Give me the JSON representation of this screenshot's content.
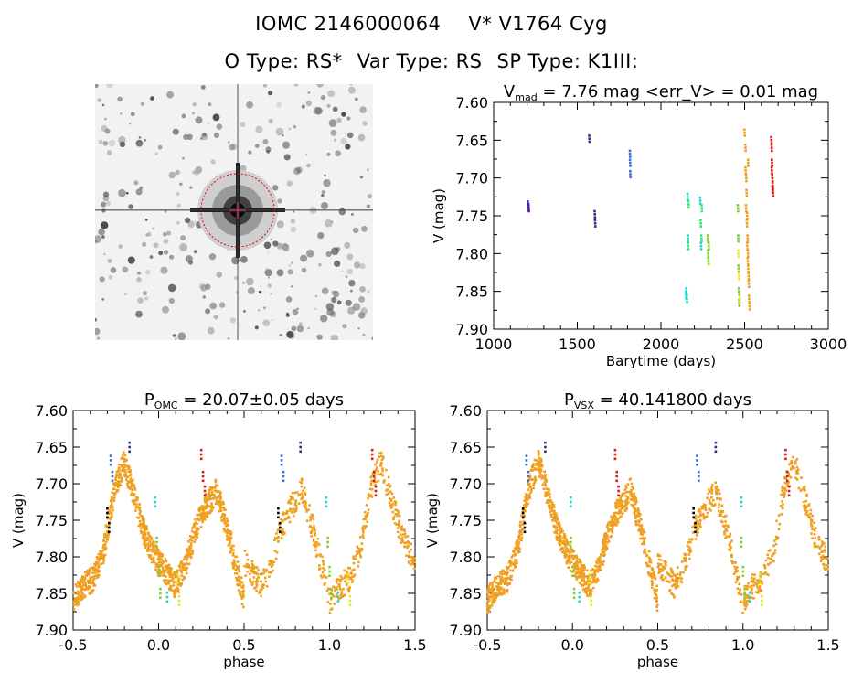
{
  "header": {
    "catalog_id": "IOMC 2146000064",
    "star_name": "V* V1764 Cyg",
    "o_type": "O Type: RS*",
    "var_type": "Var Type: RS",
    "sp_type": "SP Type: K1III:"
  },
  "colors": {
    "axis": "#000000",
    "circle": "#e00000",
    "crosshair": "#ff3060",
    "sky_background": "#f2f2f2"
  },
  "chart_data": [
    {
      "id": "lightcurve",
      "type": "scatter",
      "title_main": "V",
      "title_sub": "mad",
      "title_rest": " = 7.76 mag <err_V> = 0.01 mag",
      "xlabel": "Barytime (days)",
      "ylabel": "V (mag)",
      "xlim": [
        1000,
        3000
      ],
      "ylim": [
        7.9,
        7.6
      ],
      "xticks": [
        "1000",
        "1500",
        "2000",
        "2500",
        "3000"
      ],
      "yticks": [
        "7.60",
        "7.65",
        "7.70",
        "7.75",
        "7.80",
        "7.85",
        "7.90"
      ],
      "series": [
        {
          "color": "#5020a0",
          "x": [
            1205,
            1208,
            1210
          ],
          "y": [
            7.735,
            7.738,
            7.74
          ]
        },
        {
          "color": "#303080",
          "x": [
            1572,
            1605,
            1607
          ],
          "y": [
            7.648,
            7.748,
            7.76
          ]
        },
        {
          "color": "#3a70d0",
          "x": [
            1815,
            1816,
            1817
          ],
          "y": [
            7.668,
            7.68,
            7.695
          ]
        },
        {
          "color": "#20d8c8",
          "x": [
            2150,
            2152,
            2155,
            2160,
            2162,
            2235,
            2240
          ],
          "y": [
            7.855,
            7.85,
            7.86,
            7.725,
            7.78,
            7.73,
            7.79
          ]
        },
        {
          "color": "#30e878",
          "x": [
            2163,
            2165,
            2238,
            2242,
            2244
          ],
          "y": [
            7.79,
            7.735,
            7.76,
            7.78,
            7.74
          ]
        },
        {
          "color": "#80d030",
          "x": [
            2280,
            2282,
            2284,
            2286,
            2460,
            2462,
            2464,
            2466,
            2468
          ],
          "y": [
            7.78,
            7.8,
            7.81,
            7.79,
            7.74,
            7.78,
            7.82,
            7.85,
            7.865
          ]
        },
        {
          "color": "#e8e820",
          "x": [
            2463,
            2467,
            2471
          ],
          "y": [
            7.8,
            7.83,
            7.86
          ]
        },
        {
          "color": "#f0a020",
          "x": [
            2500,
            2505,
            2510,
            2512,
            2515,
            2518,
            2520,
            2522,
            2525,
            2527,
            2530,
            2506,
            2514,
            2519,
            2524,
            2509,
            2516,
            2521
          ],
          "y": [
            7.64,
            7.66,
            7.7,
            7.72,
            7.75,
            7.78,
            7.8,
            7.82,
            7.84,
            7.86,
            7.87,
            7.69,
            7.76,
            7.81,
            7.83,
            7.74,
            7.79,
            7.68
          ]
        },
        {
          "color": "#d02010",
          "x": [
            2660,
            2662,
            2664,
            2666,
            2668,
            2670,
            2663,
            2667
          ],
          "y": [
            7.65,
            7.66,
            7.68,
            7.7,
            7.71,
            7.72,
            7.69,
            7.715
          ]
        }
      ]
    },
    {
      "id": "phase_omc",
      "type": "scatter",
      "title_main": "P",
      "title_sub": "OMC",
      "title_rest": " = 20.07±0.05 days",
      "xlabel": "phase",
      "ylabel": "V (mag)",
      "xlim": [
        -0.5,
        1.5
      ],
      "ylim": [
        7.9,
        7.6
      ],
      "xticks": [
        "-0.5",
        "0.0",
        "0.5",
        "1.0",
        "1.5"
      ],
      "yticks": [
        "7.60",
        "7.65",
        "7.70",
        "7.75",
        "7.80",
        "7.85",
        "7.90"
      ],
      "curve": {
        "phase": [
          0.0,
          0.06,
          0.12,
          0.18,
          0.24,
          0.3,
          0.36,
          0.42,
          0.48,
          0.54,
          0.6,
          0.66,
          0.72,
          0.78,
          0.84,
          0.9,
          0.96,
          1.0
        ],
        "v": [
          7.86,
          7.84,
          7.83,
          7.79,
          7.71,
          7.67,
          7.72,
          7.77,
          7.8,
          7.82,
          7.84,
          7.81,
          7.76,
          7.73,
          7.71,
          7.76,
          7.82,
          7.86
        ]
      },
      "curve_color": "#f0a020",
      "extra_series": [
        {
          "color": "#303080",
          "x": [
            -0.17,
            0.83
          ],
          "y": [
            7.65,
            7.65
          ]
        },
        {
          "color": "#3a70d0",
          "x": [
            -0.28,
            -0.27,
            0.72,
            0.73
          ],
          "y": [
            7.668,
            7.69,
            7.668,
            7.69
          ]
        },
        {
          "color": "#000000",
          "x": [
            -0.3,
            -0.29,
            0.7,
            0.71
          ],
          "y": [
            7.74,
            7.76,
            7.74,
            7.76
          ]
        },
        {
          "color": "#20d8c8",
          "x": [
            -0.02,
            0.05,
            0.98,
            1.05
          ],
          "y": [
            7.725,
            7.855,
            7.725,
            7.855
          ]
        },
        {
          "color": "#80d030",
          "x": [
            -0.01,
            0.0,
            0.01,
            0.99,
            1.0,
            1.01
          ],
          "y": [
            7.78,
            7.82,
            7.85,
            7.78,
            7.82,
            7.85
          ]
        },
        {
          "color": "#e8e820",
          "x": [
            0.11,
            0.12,
            1.11,
            1.12
          ],
          "y": [
            7.83,
            7.86,
            7.83,
            7.86
          ]
        },
        {
          "color": "#d02010",
          "x": [
            0.25,
            0.26,
            0.27,
            1.25,
            1.26,
            1.27
          ],
          "y": [
            7.66,
            7.69,
            7.71,
            7.66,
            7.69,
            7.71
          ]
        }
      ]
    },
    {
      "id": "phase_vsx",
      "type": "scatter",
      "title_main": "P",
      "title_sub": "VSX",
      "title_rest": " = 40.141800 days",
      "xlabel": "phase",
      "ylabel": "V (mag)",
      "xlim": [
        -0.5,
        1.5
      ],
      "ylim": [
        7.9,
        7.6
      ],
      "xticks": [
        "-0.5",
        "0.0",
        "0.5",
        "1.0",
        "1.5"
      ],
      "yticks": [
        "7.60",
        "7.65",
        "7.70",
        "7.75",
        "7.80",
        "7.85",
        "7.90"
      ],
      "curve": {
        "phase": [
          0.0,
          0.06,
          0.12,
          0.18,
          0.24,
          0.3,
          0.36,
          0.42,
          0.48,
          0.54,
          0.6,
          0.66,
          0.72,
          0.78,
          0.84,
          0.9,
          0.96,
          1.0
        ],
        "v": [
          7.86,
          7.84,
          7.83,
          7.79,
          7.71,
          7.67,
          7.72,
          7.77,
          7.8,
          7.82,
          7.84,
          7.81,
          7.76,
          7.73,
          7.71,
          7.76,
          7.82,
          7.86
        ]
      },
      "curve_color": "#f0a020",
      "extra_series": [
        {
          "color": "#303080",
          "x": [
            -0.16,
            0.84
          ],
          "y": [
            7.65,
            7.65
          ]
        },
        {
          "color": "#3a70d0",
          "x": [
            -0.27,
            -0.26,
            0.73,
            0.74
          ],
          "y": [
            7.668,
            7.69,
            7.668,
            7.69
          ]
        },
        {
          "color": "#000000",
          "x": [
            -0.29,
            -0.28,
            0.71,
            0.72
          ],
          "y": [
            7.74,
            7.76,
            7.74,
            7.76
          ]
        },
        {
          "color": "#20d8c8",
          "x": [
            -0.01,
            0.04,
            0.99,
            1.04
          ],
          "y": [
            7.725,
            7.855,
            7.725,
            7.855
          ]
        },
        {
          "color": "#80d030",
          "x": [
            -0.01,
            0.0,
            0.01,
            0.99,
            1.0,
            1.01
          ],
          "y": [
            7.78,
            7.82,
            7.85,
            7.78,
            7.82,
            7.85
          ]
        },
        {
          "color": "#e8e820",
          "x": [
            0.1,
            0.11,
            1.1,
            1.11
          ],
          "y": [
            7.83,
            7.86,
            7.83,
            7.86
          ]
        },
        {
          "color": "#d02010",
          "x": [
            0.25,
            0.26,
            0.27,
            1.25,
            1.26,
            1.27
          ],
          "y": [
            7.66,
            7.69,
            7.71,
            7.66,
            7.69,
            7.71
          ]
        }
      ]
    }
  ]
}
